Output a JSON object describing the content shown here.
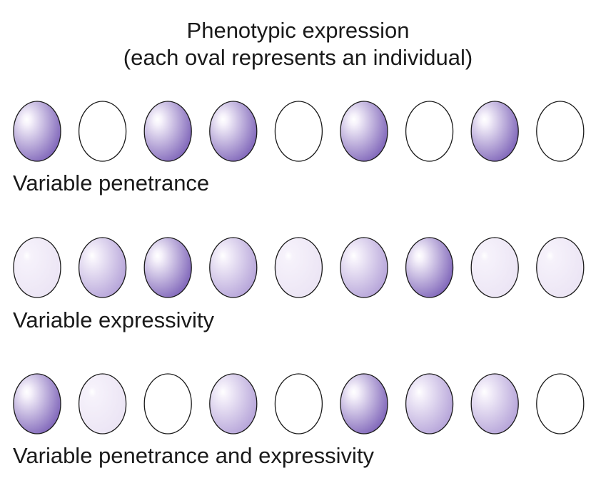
{
  "title": {
    "line1": "Phenotypic expression",
    "line2": "(each oval represents an individual)"
  },
  "colors": {
    "outline": "#1a1a1a",
    "none": "#ffffff",
    "light": "#ebe4f4",
    "medium": "#b4a2d8",
    "dark": "#7d63b8"
  },
  "rows": [
    {
      "label": "Variable penetrance",
      "individuals": [
        "dark",
        "none",
        "dark",
        "dark",
        "none",
        "dark",
        "none",
        "dark",
        "none"
      ]
    },
    {
      "label": "Variable expressivity",
      "individuals": [
        "light",
        "medium",
        "dark",
        "medium",
        "light",
        "medium",
        "dark",
        "light",
        "light"
      ]
    },
    {
      "label": "Variable penetrance and expressivity",
      "individuals": [
        "dark",
        "light",
        "none",
        "medium",
        "none",
        "dark",
        "medium",
        "medium",
        "none"
      ]
    }
  ]
}
